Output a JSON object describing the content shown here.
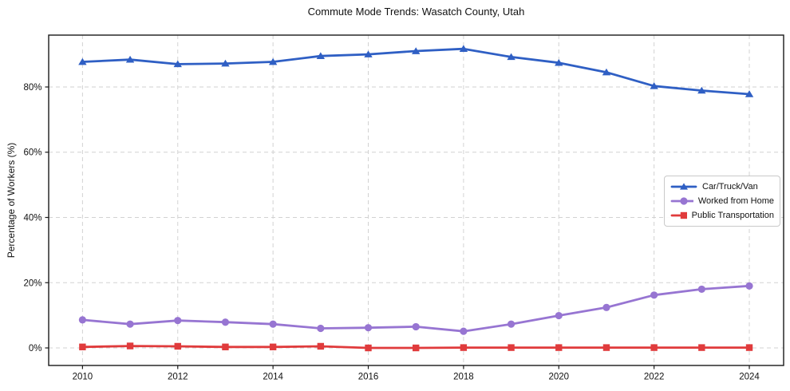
{
  "title": "Commute Mode Trends: Wasatch County, Utah",
  "chart_data": {
    "type": "line",
    "title": "Commute Mode Trends: Wasatch County, Utah",
    "xlabel": "",
    "ylabel": "Percentage of Workers (%)",
    "x": [
      2010,
      2011,
      2012,
      2013,
      2014,
      2015,
      2016,
      2017,
      2018,
      2019,
      2020,
      2021,
      2022,
      2023,
      2024
    ],
    "series": [
      {
        "name": "Car/Truck/Van",
        "color": "#2F5FC4",
        "marker": "triangle",
        "values": [
          87.7,
          88.4,
          87.0,
          87.2,
          87.7,
          89.5,
          90.0,
          91.0,
          91.7,
          89.2,
          87.4,
          84.5,
          80.3,
          78.9,
          77.8
        ]
      },
      {
        "name": "Worked from Home",
        "color": "#9775D2",
        "marker": "circle",
        "values": [
          8.6,
          7.3,
          8.4,
          7.9,
          7.3,
          6.0,
          6.2,
          6.5,
          5.1,
          7.3,
          9.9,
          12.4,
          16.2,
          18.0,
          19.0
        ]
      },
      {
        "name": "Public Transportation",
        "color": "#E03B3C",
        "marker": "square",
        "values": [
          0.3,
          0.6,
          0.5,
          0.3,
          0.3,
          0.5,
          0.0,
          0.0,
          0.1,
          0.1,
          0.1,
          0.1,
          0.1,
          0.1,
          0.1
        ]
      }
    ],
    "xticks": [
      2010,
      2012,
      2014,
      2016,
      2018,
      2020,
      2022,
      2024
    ],
    "yticks": [
      {
        "value": 0,
        "label": "0%"
      },
      {
        "value": 20,
        "label": "20%"
      },
      {
        "value": 40,
        "label": "40%"
      },
      {
        "value": 60,
        "label": "60%"
      },
      {
        "value": 80,
        "label": "80%"
      }
    ],
    "xlim": [
      2009.29,
      2024.72
    ],
    "ylim": [
      -5.38,
      95.9
    ],
    "grid": true,
    "legend_position": "center right",
    "colors": {
      "grid": "#d2d2d2",
      "spine": "#1a1a1a",
      "tick_text": "#111111",
      "background": "#ffffff"
    }
  }
}
